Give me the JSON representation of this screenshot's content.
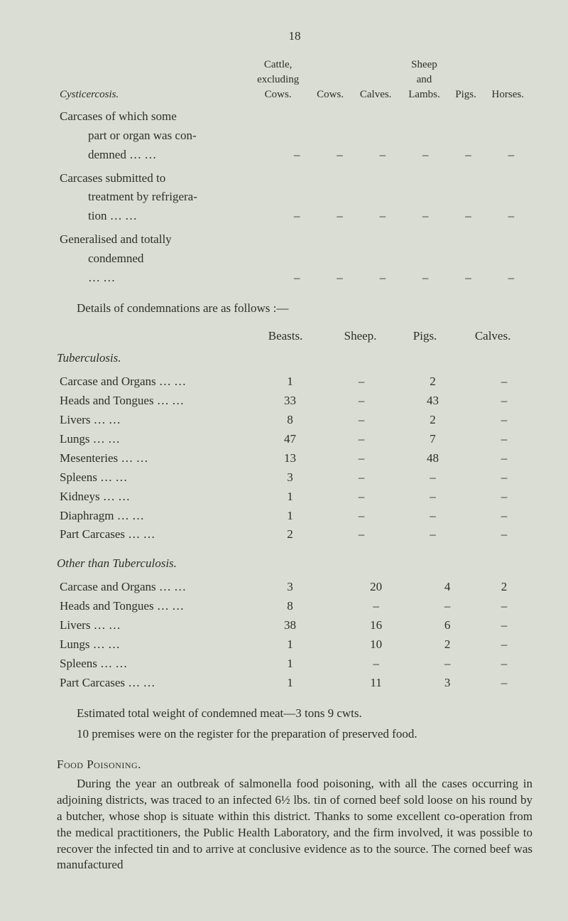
{
  "pageNumber": "18",
  "topTable": {
    "header": {
      "col1": {
        "l1": "Cattle,",
        "l2": "excluding",
        "l3": "Cows."
      },
      "col2": "Cows.",
      "col3": "Calves.",
      "col4": {
        "l1": "Sheep",
        "l2": "and",
        "l3": "Lambs."
      },
      "col5": "Pigs.",
      "col6": "Horses."
    },
    "sectionTitle": "Cysticercosis.",
    "rows": [
      {
        "label1": "Carcases of which some",
        "label2": "part or organ was con-",
        "label3": "demned",
        "vals": [
          "–",
          "–",
          "–",
          "–",
          "–",
          "–"
        ]
      },
      {
        "label1": "Carcases submitted to",
        "label2": "treatment by refrigera-",
        "label3": "tion",
        "vals": [
          "–",
          "–",
          "–",
          "–",
          "–",
          "–"
        ]
      },
      {
        "label1": "Generalised and totally",
        "label2": "condemned",
        "label3": "",
        "vals": [
          "–",
          "–",
          "–",
          "–",
          "–",
          "–"
        ]
      }
    ]
  },
  "detailsLine": "Details of condemnations are as follows :—",
  "dataHeader": [
    "Beasts.",
    "Sheep.",
    "Pigs.",
    "Calves."
  ],
  "tuberculosis": {
    "title": "Tuberculosis.",
    "rows": [
      {
        "label": "Carcase and Organs",
        "vals": [
          "1",
          "–",
          "2",
          "–"
        ]
      },
      {
        "label": "Heads and Tongues",
        "vals": [
          "33",
          "–",
          "43",
          "–"
        ]
      },
      {
        "label": "Livers",
        "vals": [
          "8",
          "–",
          "2",
          "–"
        ]
      },
      {
        "label": "Lungs",
        "vals": [
          "47",
          "–",
          "7",
          "–"
        ]
      },
      {
        "label": "Mesenteries",
        "vals": [
          "13",
          "–",
          "48",
          "–"
        ]
      },
      {
        "label": "Spleens",
        "vals": [
          "3",
          "–",
          "–",
          "–"
        ]
      },
      {
        "label": "Kidneys",
        "vals": [
          "1",
          "–",
          "–",
          "–"
        ]
      },
      {
        "label": "Diaphragm",
        "vals": [
          "1",
          "–",
          "–",
          "–"
        ]
      },
      {
        "label": "Part Carcases",
        "vals": [
          "2",
          "–",
          "–",
          "–"
        ]
      }
    ]
  },
  "other": {
    "title": "Other than Tuberculosis.",
    "rows": [
      {
        "label": "Carcase and Organs",
        "vals": [
          "3",
          "20",
          "4",
          "2"
        ]
      },
      {
        "label": "Heads and Tongues",
        "vals": [
          "8",
          "–",
          "–",
          "–"
        ]
      },
      {
        "label": "Livers",
        "vals": [
          "38",
          "16",
          "6",
          "–"
        ]
      },
      {
        "label": "Lungs",
        "vals": [
          "1",
          "10",
          "2",
          "–"
        ]
      },
      {
        "label": "Spleens",
        "vals": [
          "1",
          "–",
          "–",
          "–"
        ]
      },
      {
        "label": "Part Carcases",
        "vals": [
          "1",
          "11",
          "3",
          "–"
        ]
      }
    ]
  },
  "para1a": "Estimated total weight of condemned meat—3 tons 9 cwts.",
  "para2a": "10 premises were on the register for the preparation of preserved food.",
  "foodHeading": "Food Poisoning.",
  "foodPara": "During the year an outbreak of salmonella food poisoning, with all the cases occurring in adjoining districts, was traced to an infected 6½ lbs. tin of corned beef sold loose on his round by a butcher, whose shop is situate within this district. Thanks to some excellent co-operation from the medical practitioners, the Public Health Laboratory, and the firm involved, it was possible to recover the infected tin and to arrive at conclusive evidence as to the source. The corned beef was manufactured"
}
